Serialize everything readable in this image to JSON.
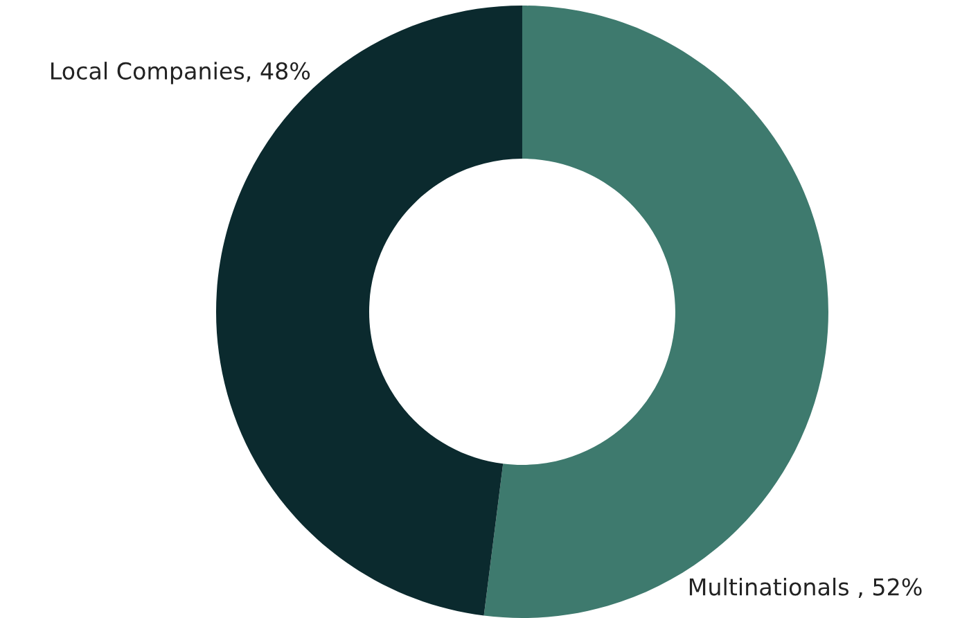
{
  "chart_data": {
    "type": "donut",
    "categories": [
      "Multinationals ",
      "Local Companies"
    ],
    "values": [
      52,
      48
    ],
    "value_labels": [
      "52%",
      "48%"
    ],
    "colors": [
      "#3e7a6e",
      "#0b2a2e"
    ]
  }
}
